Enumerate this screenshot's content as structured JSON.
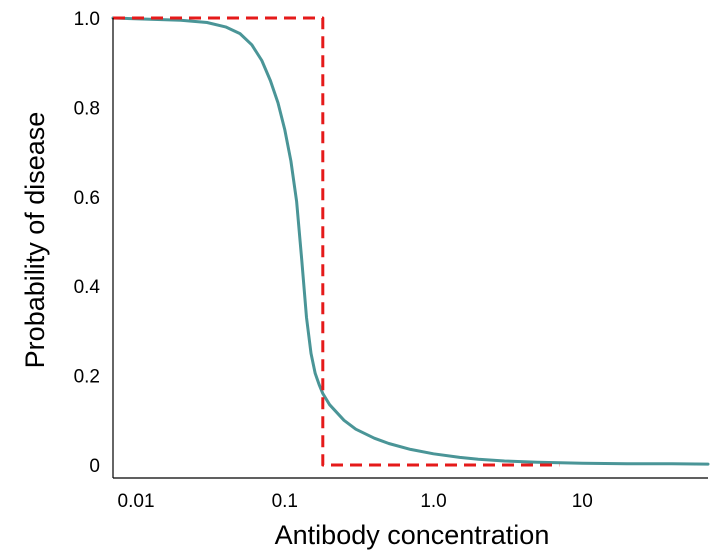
{
  "chart_data": {
    "type": "line",
    "title": "",
    "xlabel": "Antibody concentration",
    "ylabel": "Probability of disease",
    "x_scale": "log",
    "xlim": [
      0.007,
      70
    ],
    "ylim": [
      0,
      1
    ],
    "x_ticks": [
      {
        "value": 0.01,
        "label": "0.01"
      },
      {
        "value": 0.1,
        "label": "0.1"
      },
      {
        "value": 1.0,
        "label": "1.0"
      },
      {
        "value": 10,
        "label": "10"
      }
    ],
    "y_ticks": [
      {
        "value": 0,
        "label": "0"
      },
      {
        "value": 0.2,
        "label": "0.2"
      },
      {
        "value": 0.4,
        "label": "0.4"
      },
      {
        "value": 0.6,
        "label": "0.6"
      },
      {
        "value": 0.8,
        "label": "0.8"
      },
      {
        "value": 1.0,
        "label": "1.0"
      }
    ],
    "grid": false,
    "legend": "none",
    "series": [
      {
        "style": "solid",
        "color": "#4a9597",
        "x": [
          0.007,
          0.02,
          0.03,
          0.04,
          0.05,
          0.06,
          0.07,
          0.08,
          0.09,
          0.1,
          0.11,
          0.12,
          0.13,
          0.14,
          0.15,
          0.16,
          0.17,
          0.18,
          0.2,
          0.25,
          0.3,
          0.4,
          0.5,
          0.7,
          1.0,
          1.5,
          2,
          3,
          5,
          10,
          20,
          40,
          70
        ],
        "y": [
          1.0,
          0.995,
          0.99,
          0.98,
          0.965,
          0.94,
          0.905,
          0.86,
          0.81,
          0.75,
          0.68,
          0.59,
          0.46,
          0.33,
          0.25,
          0.205,
          0.18,
          0.16,
          0.135,
          0.1,
          0.08,
          0.06,
          0.048,
          0.035,
          0.025,
          0.017,
          0.013,
          0.009,
          0.006,
          0.004,
          0.003,
          0.003,
          0.002
        ]
      },
      {
        "style": "dashed",
        "color": "#e51a1a",
        "x": [
          0.007,
          0.15,
          0.15,
          0.18,
          0.18,
          7
        ],
        "y": [
          1.0,
          1.0,
          1.0,
          1.0,
          0,
          0
        ]
      }
    ]
  }
}
